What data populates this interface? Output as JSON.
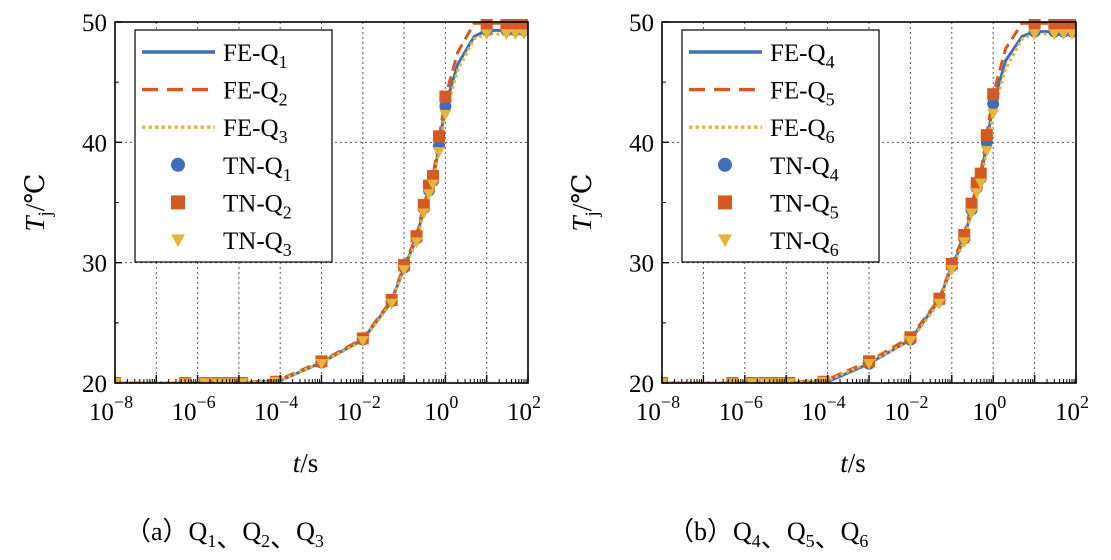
{
  "chart_data": [
    {
      "type": "line",
      "panel_caption": {
        "prefix": "（a）",
        "items": [
          {
            "base": "Q",
            "sub": "1"
          },
          {
            "base": "Q",
            "sub": "2"
          },
          {
            "base": "Q",
            "sub": "3"
          }
        ],
        "separator": "、"
      },
      "xlabel": {
        "italic": "t",
        "rest": "/s"
      },
      "ylabel": {
        "italic": "T",
        "sub": "j",
        "rest": "/℃"
      },
      "xscale": "log",
      "xlim": [
        1e-08,
        100
      ],
      "ylim": [
        20,
        50
      ],
      "x_ticks": [
        {
          "base": "10",
          "exp": "−8",
          "value": 1e-08
        },
        {
          "base": "10",
          "exp": "−6",
          "value": 1e-06
        },
        {
          "base": "10",
          "exp": "−4",
          "value": 0.0001
        },
        {
          "base": "10",
          "exp": "−2",
          "value": 0.01
        },
        {
          "base": "10",
          "exp": "0",
          "value": 1
        },
        {
          "base": "10",
          "exp": "2",
          "value": 100
        }
      ],
      "y_ticks": [
        "20",
        "30",
        "40",
        "50"
      ],
      "grid": true,
      "legend_position": "top-left",
      "series": [
        {
          "name": {
            "base": "FE-Q",
            "sub": "1"
          },
          "kind": "line",
          "style": "solid",
          "color": "#3f6fba",
          "x": [
            1e-08,
            1e-06,
            1e-05,
            0.0001,
            0.001,
            0.01,
            0.05,
            0.1,
            0.2,
            0.3,
            0.5,
            0.7,
            1,
            2,
            5,
            10,
            100
          ],
          "y": [
            20,
            20,
            20,
            20.2,
            21.7,
            23.6,
            26.8,
            29.6,
            32.0,
            34.5,
            36.8,
            39.7,
            43.0,
            46.5,
            48.8,
            49.3,
            49.3
          ]
        },
        {
          "name": {
            "base": "FE-Q",
            "sub": "2"
          },
          "kind": "line",
          "style": "dashed",
          "color": "#d35a22",
          "x": [
            1e-08,
            1e-06,
            1e-05,
            0.0001,
            0.001,
            0.01,
            0.05,
            0.1,
            0.2,
            0.3,
            0.5,
            0.7,
            1,
            2,
            5,
            10,
            100
          ],
          "y": [
            20,
            20,
            20,
            20.3,
            21.8,
            23.7,
            26.9,
            29.8,
            32.2,
            34.8,
            37.2,
            40.2,
            43.8,
            47.5,
            49.9,
            49.9,
            49.9
          ]
        },
        {
          "name": {
            "base": "FE-Q",
            "sub": "3"
          },
          "kind": "line",
          "style": "dotted",
          "color": "#e5b43a",
          "x": [
            1e-08,
            1e-06,
            1e-05,
            0.0001,
            0.001,
            0.01,
            0.05,
            0.1,
            0.2,
            0.3,
            0.5,
            0.7,
            1,
            2,
            5,
            10,
            100
          ],
          "y": [
            20,
            20,
            20,
            20.2,
            21.7,
            23.5,
            26.7,
            29.5,
            31.8,
            34.2,
            36.5,
            39.3,
            42.5,
            46.0,
            48.6,
            49.0,
            49.0
          ]
        },
        {
          "name": {
            "base": "TN-Q",
            "sub": "1"
          },
          "kind": "marker",
          "marker": "circle",
          "color": "#3f6fba",
          "x": [
            1e-08,
            5e-07,
            1.5e-06,
            3e-06,
            5e-06,
            8e-06,
            1.2e-05,
            8e-05,
            0.001,
            0.01,
            0.05,
            0.1,
            0.2,
            0.3,
            0.4,
            0.5,
            0.7,
            1,
            10,
            30,
            50,
            80
          ],
          "y": [
            20,
            20,
            20,
            20,
            20,
            20,
            20,
            20.1,
            21.7,
            23.6,
            26.8,
            29.6,
            32.0,
            34.5,
            36.0,
            36.8,
            39.7,
            43.0,
            49.3,
            49.3,
            49.3,
            49.3
          ]
        },
        {
          "name": {
            "base": "TN-Q",
            "sub": "2"
          },
          "kind": "marker",
          "marker": "square",
          "color": "#d35a22",
          "x": [
            1e-08,
            5e-07,
            1.5e-06,
            3e-06,
            5e-06,
            8e-06,
            1.2e-05,
            8e-05,
            0.001,
            0.01,
            0.05,
            0.1,
            0.2,
            0.3,
            0.4,
            0.5,
            0.7,
            1,
            10,
            30,
            50,
            80
          ],
          "y": [
            20,
            20,
            20,
            20,
            20,
            20,
            20,
            20.1,
            21.8,
            23.7,
            26.9,
            29.8,
            32.2,
            34.8,
            36.4,
            37.2,
            40.5,
            43.8,
            49.9,
            49.9,
            49.9,
            49.9
          ]
        },
        {
          "name": {
            "base": "TN-Q",
            "sub": "3"
          },
          "kind": "marker",
          "marker": "triangle-down",
          "color": "#e5b43a",
          "x": [
            1e-08,
            5e-07,
            1.5e-06,
            3e-06,
            5e-06,
            8e-06,
            1.2e-05,
            8e-05,
            0.001,
            0.01,
            0.05,
            0.1,
            0.2,
            0.3,
            0.4,
            0.5,
            0.7,
            1,
            10,
            30,
            50,
            80
          ],
          "y": [
            20,
            20,
            20,
            20,
            20,
            20,
            20,
            20.1,
            21.6,
            23.5,
            26.6,
            29.4,
            31.7,
            34.1,
            35.7,
            36.5,
            39.2,
            42.3,
            49.0,
            49.0,
            49.0,
            49.0
          ]
        }
      ]
    },
    {
      "type": "line",
      "panel_caption": {
        "prefix": "（b）",
        "items": [
          {
            "base": "Q",
            "sub": "4"
          },
          {
            "base": "Q",
            "sub": "5"
          },
          {
            "base": "Q",
            "sub": "6"
          }
        ],
        "separator": "、"
      },
      "xlabel": {
        "italic": "t",
        "rest": "/s"
      },
      "ylabel": {
        "italic": "T",
        "sub": "j",
        "rest": "/℃"
      },
      "xscale": "log",
      "xlim": [
        1e-08,
        100
      ],
      "ylim": [
        20,
        50
      ],
      "x_ticks": [
        {
          "base": "10",
          "exp": "−8",
          "value": 1e-08
        },
        {
          "base": "10",
          "exp": "−6",
          "value": 1e-06
        },
        {
          "base": "10",
          "exp": "−4",
          "value": 0.0001
        },
        {
          "base": "10",
          "exp": "−2",
          "value": 0.01
        },
        {
          "base": "10",
          "exp": "0",
          "value": 1
        },
        {
          "base": "10",
          "exp": "2",
          "value": 100
        }
      ],
      "y_ticks": [
        "20",
        "30",
        "40",
        "50"
      ],
      "grid": true,
      "legend_position": "top-left",
      "series": [
        {
          "name": {
            "base": "FE-Q",
            "sub": "4"
          },
          "kind": "line",
          "style": "solid",
          "color": "#3f6fba",
          "x": [
            1e-08,
            1e-06,
            1e-05,
            0.0001,
            0.001,
            0.01,
            0.05,
            0.1,
            0.2,
            0.3,
            0.5,
            0.7,
            1,
            2,
            5,
            10,
            100
          ],
          "y": [
            20,
            20,
            20,
            20.1,
            21.6,
            23.6,
            26.9,
            29.7,
            32.0,
            34.4,
            37.0,
            40.0,
            43.2,
            46.8,
            48.8,
            49.2,
            49.2
          ]
        },
        {
          "name": {
            "base": "FE-Q",
            "sub": "5"
          },
          "kind": "line",
          "style": "dashed",
          "color": "#d35a22",
          "x": [
            1e-08,
            1e-06,
            1e-05,
            0.0001,
            0.001,
            0.01,
            0.05,
            0.1,
            0.2,
            0.3,
            0.5,
            0.7,
            1,
            2,
            5,
            10,
            100
          ],
          "y": [
            20,
            20,
            20,
            20.3,
            21.8,
            23.8,
            27.0,
            29.9,
            32.3,
            34.9,
            37.4,
            40.6,
            44.0,
            47.8,
            49.9,
            49.9,
            49.9
          ]
        },
        {
          "name": {
            "base": "FE-Q",
            "sub": "6"
          },
          "kind": "line",
          "style": "dotted",
          "color": "#e5b43a",
          "x": [
            1e-08,
            1e-06,
            1e-05,
            0.0001,
            0.001,
            0.01,
            0.05,
            0.1,
            0.2,
            0.3,
            0.5,
            0.7,
            1,
            2,
            5,
            10,
            100
          ],
          "y": [
            20,
            20,
            20,
            20.2,
            21.7,
            23.5,
            26.7,
            29.5,
            31.8,
            34.2,
            36.6,
            39.4,
            42.6,
            46.1,
            48.6,
            49.0,
            49.0
          ]
        },
        {
          "name": {
            "base": "TN-Q",
            "sub": "4"
          },
          "kind": "marker",
          "marker": "circle",
          "color": "#3f6fba",
          "x": [
            1e-08,
            5e-07,
            1.5e-06,
            3e-06,
            5e-06,
            8e-06,
            1.2e-05,
            8e-05,
            0.001,
            0.01,
            0.05,
            0.1,
            0.2,
            0.3,
            0.4,
            0.5,
            0.7,
            1,
            10,
            30,
            50,
            80
          ],
          "y": [
            20,
            20,
            20,
            20,
            20,
            20,
            20,
            20.1,
            21.6,
            23.6,
            26.9,
            29.7,
            32.0,
            34.4,
            36.2,
            37.0,
            40.0,
            43.2,
            49.2,
            49.2,
            49.2,
            49.2
          ]
        },
        {
          "name": {
            "base": "TN-Q",
            "sub": "5"
          },
          "kind": "marker",
          "marker": "square",
          "color": "#d35a22",
          "x": [
            1e-08,
            5e-07,
            1.5e-06,
            3e-06,
            5e-06,
            8e-06,
            1.2e-05,
            8e-05,
            0.001,
            0.01,
            0.05,
            0.1,
            0.2,
            0.3,
            0.4,
            0.5,
            0.7,
            1,
            10,
            30,
            50,
            80
          ],
          "y": [
            20,
            20,
            20,
            20,
            20,
            20,
            20,
            20.1,
            21.8,
            23.8,
            27.0,
            29.9,
            32.3,
            34.9,
            36.6,
            37.4,
            40.6,
            44.0,
            49.9,
            49.9,
            49.9,
            49.9
          ]
        },
        {
          "name": {
            "base": "TN-Q",
            "sub": "6"
          },
          "kind": "marker",
          "marker": "triangle-down",
          "color": "#e5b43a",
          "x": [
            1e-08,
            5e-07,
            1.5e-06,
            3e-06,
            5e-06,
            8e-06,
            1.2e-05,
            8e-05,
            0.001,
            0.01,
            0.05,
            0.1,
            0.2,
            0.3,
            0.4,
            0.5,
            0.7,
            1,
            10,
            30,
            50,
            80
          ],
          "y": [
            20,
            20,
            20,
            20,
            20,
            20,
            20,
            20.1,
            21.6,
            23.5,
            26.6,
            29.4,
            31.7,
            34.1,
            35.8,
            36.6,
            39.3,
            42.4,
            49.0,
            49.0,
            49.0,
            49.0
          ]
        }
      ]
    }
  ]
}
